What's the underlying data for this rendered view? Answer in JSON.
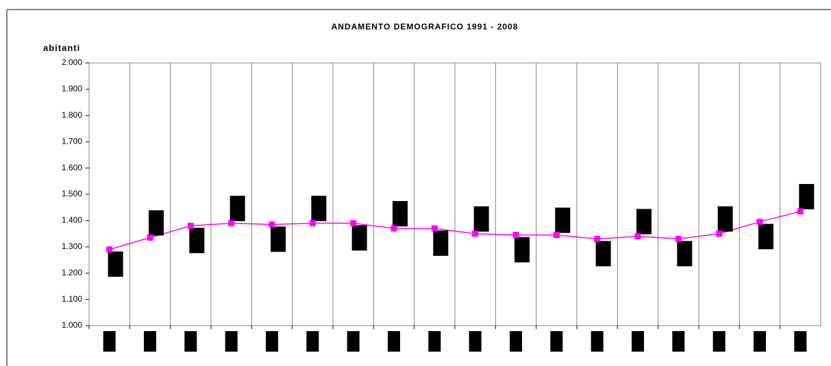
{
  "chart_data": {
    "type": "line",
    "title": "ANDAMENTO DEMOGRAFICO 1991 - 2008",
    "ylabel": "abitanti",
    "categories": [
      null,
      null,
      null,
      null,
      null,
      null,
      null,
      null,
      null,
      null,
      null,
      null,
      null,
      null,
      null,
      null,
      null,
      null
    ],
    "series": [
      {
        "color": "#ff00ff",
        "values": [
          1290,
          1335,
          1380,
          1390,
          1385,
          1390,
          1390,
          1370,
          1370,
          1350,
          1345,
          1345,
          1330,
          1340,
          1330,
          1350,
          1395,
          1435
        ]
      }
    ],
    "ylim": [
      1000,
      2000
    ],
    "yticks": [
      {
        "value": 1000,
        "label": "1.000"
      },
      {
        "value": 1100,
        "label": "1.100"
      },
      {
        "value": 1200,
        "label": "1.200"
      },
      {
        "value": 1300,
        "label": "1.300"
      },
      {
        "value": 1400,
        "label": "1.400"
      },
      {
        "value": 1500,
        "label": "1.500"
      },
      {
        "value": 1600,
        "label": "1.600"
      },
      {
        "value": 1700,
        "label": "1.700"
      },
      {
        "value": 1800,
        "label": "1.800"
      },
      {
        "value": 1900,
        "label": "1.900"
      },
      {
        "value": 2000,
        "label": "2.000"
      }
    ],
    "grid": "x"
  }
}
